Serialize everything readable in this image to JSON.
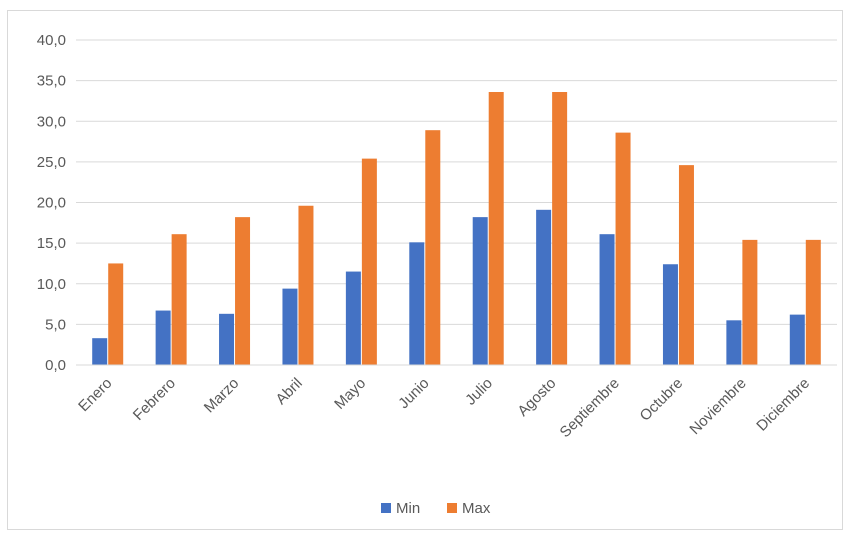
{
  "chart_data": {
    "type": "bar",
    "title": "",
    "xlabel": "",
    "ylabel": "",
    "categories": [
      "Enero",
      "Febrero",
      "Marzo",
      "Abril",
      "Mayo",
      "Junio",
      "Julio",
      "Agosto",
      "Septiembre",
      "Octubre",
      "Noviembre",
      "Diciembre"
    ],
    "series": [
      {
        "name": "Min",
        "color": "#4472c4",
        "values": [
          3.3,
          6.7,
          6.3,
          9.4,
          11.5,
          15.1,
          18.2,
          19.1,
          16.1,
          12.4,
          5.5,
          6.2
        ]
      },
      {
        "name": "Max",
        "color": "#ed7d31",
        "values": [
          12.5,
          16.1,
          18.2,
          19.6,
          25.4,
          28.9,
          33.6,
          33.6,
          28.6,
          24.6,
          15.4,
          15.4
        ]
      }
    ],
    "ylim": [
      0,
      40
    ],
    "yticks": [
      "0,0",
      "5,0",
      "10,0",
      "15,0",
      "20,0",
      "25,0",
      "30,0",
      "35,0",
      "40,0"
    ],
    "grid": true,
    "legend_position": "bottom"
  }
}
